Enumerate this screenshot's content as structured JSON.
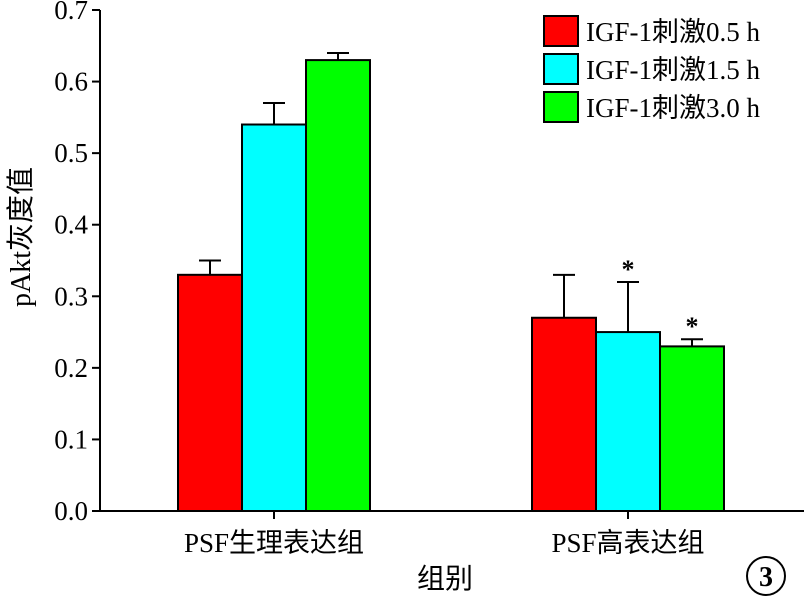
{
  "chart_data": {
    "type": "bar",
    "categories": [
      "PSF生理表达组",
      "PSF高表达组"
    ],
    "series": [
      {
        "name": "IGF-1刺激0.5 h",
        "color": "#ff0000",
        "values": [
          0.33,
          0.27
        ],
        "errors": [
          0.02,
          0.06
        ],
        "marks": [
          "",
          ""
        ]
      },
      {
        "name": "IGF-1刺激1.5 h",
        "color": "#00ffff",
        "values": [
          0.54,
          0.25
        ],
        "errors": [
          0.03,
          0.07
        ],
        "marks": [
          "",
          "*"
        ]
      },
      {
        "name": "IGF-1刺激3.0 h",
        "color": "#00ff00",
        "values": [
          0.63,
          0.23
        ],
        "errors": [
          0.01,
          0.01
        ],
        "marks": [
          "",
          "*"
        ]
      }
    ],
    "xlabel": "组别",
    "ylabel": "pAkt灰度值",
    "ylim": [
      0,
      0.7
    ],
    "yticks": [
      "0.0",
      "0.1",
      "0.2",
      "0.3",
      "0.4",
      "0.5",
      "0.6",
      "0.7"
    ],
    "grid": false,
    "legend": "top-right"
  },
  "panel_label": "3"
}
